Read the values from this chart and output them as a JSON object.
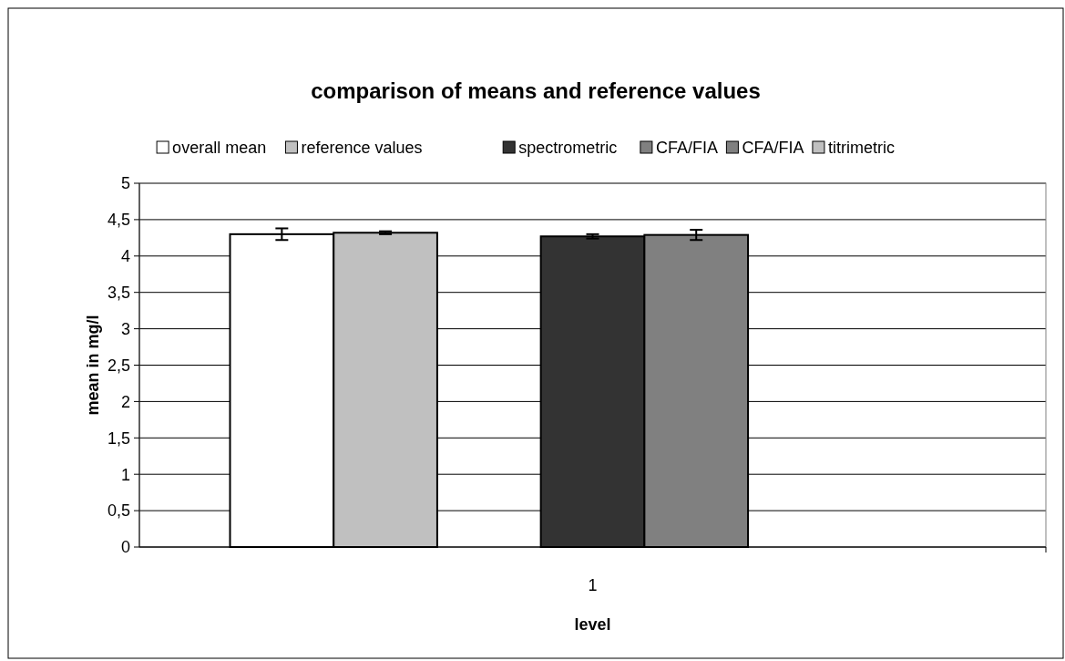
{
  "chart_data": {
    "type": "bar",
    "title": "comparison of means and reference values",
    "xlabel": "level",
    "ylabel": "mean in mg/l",
    "categories": [
      "1"
    ],
    "series": [
      {
        "name": "overall mean",
        "color": "#ffffff",
        "values": [
          4.3
        ],
        "errors": [
          0.08
        ]
      },
      {
        "name": "reference values",
        "color": "#c0c0c0",
        "values": [
          4.32
        ],
        "errors": [
          0.02
        ]
      },
      {
        "color": "#ffffff",
        "values": [
          0
        ],
        "errors": [
          null
        ]
      },
      {
        "name": "spectrometric",
        "color": "#333333",
        "values": [
          4.27
        ],
        "errors": [
          0.03
        ]
      },
      {
        "name": "CFA/FIA",
        "color": "#808080",
        "values": [
          4.29
        ],
        "errors": [
          0.07
        ]
      },
      {
        "name": "CFA/FIA",
        "color": "#808080",
        "values": [
          null
        ],
        "errors": [
          null
        ]
      },
      {
        "name": "titrimetric",
        "color": "#c0c0c0",
        "values": [
          null
        ],
        "errors": [
          null
        ]
      }
    ],
    "ylim": [
      0,
      5
    ],
    "yticks": [
      0,
      {
        "value": 0.5,
        "label": "0,5"
      },
      1,
      {
        "value": 1.5,
        "label": "1,5"
      },
      2,
      {
        "value": 2.5,
        "label": "2,5"
      },
      3,
      {
        "value": 3.5,
        "label": "3,5"
      },
      4,
      {
        "value": 4.5,
        "label": "4,5"
      },
      5
    ],
    "grid": "y",
    "legend": "top"
  }
}
